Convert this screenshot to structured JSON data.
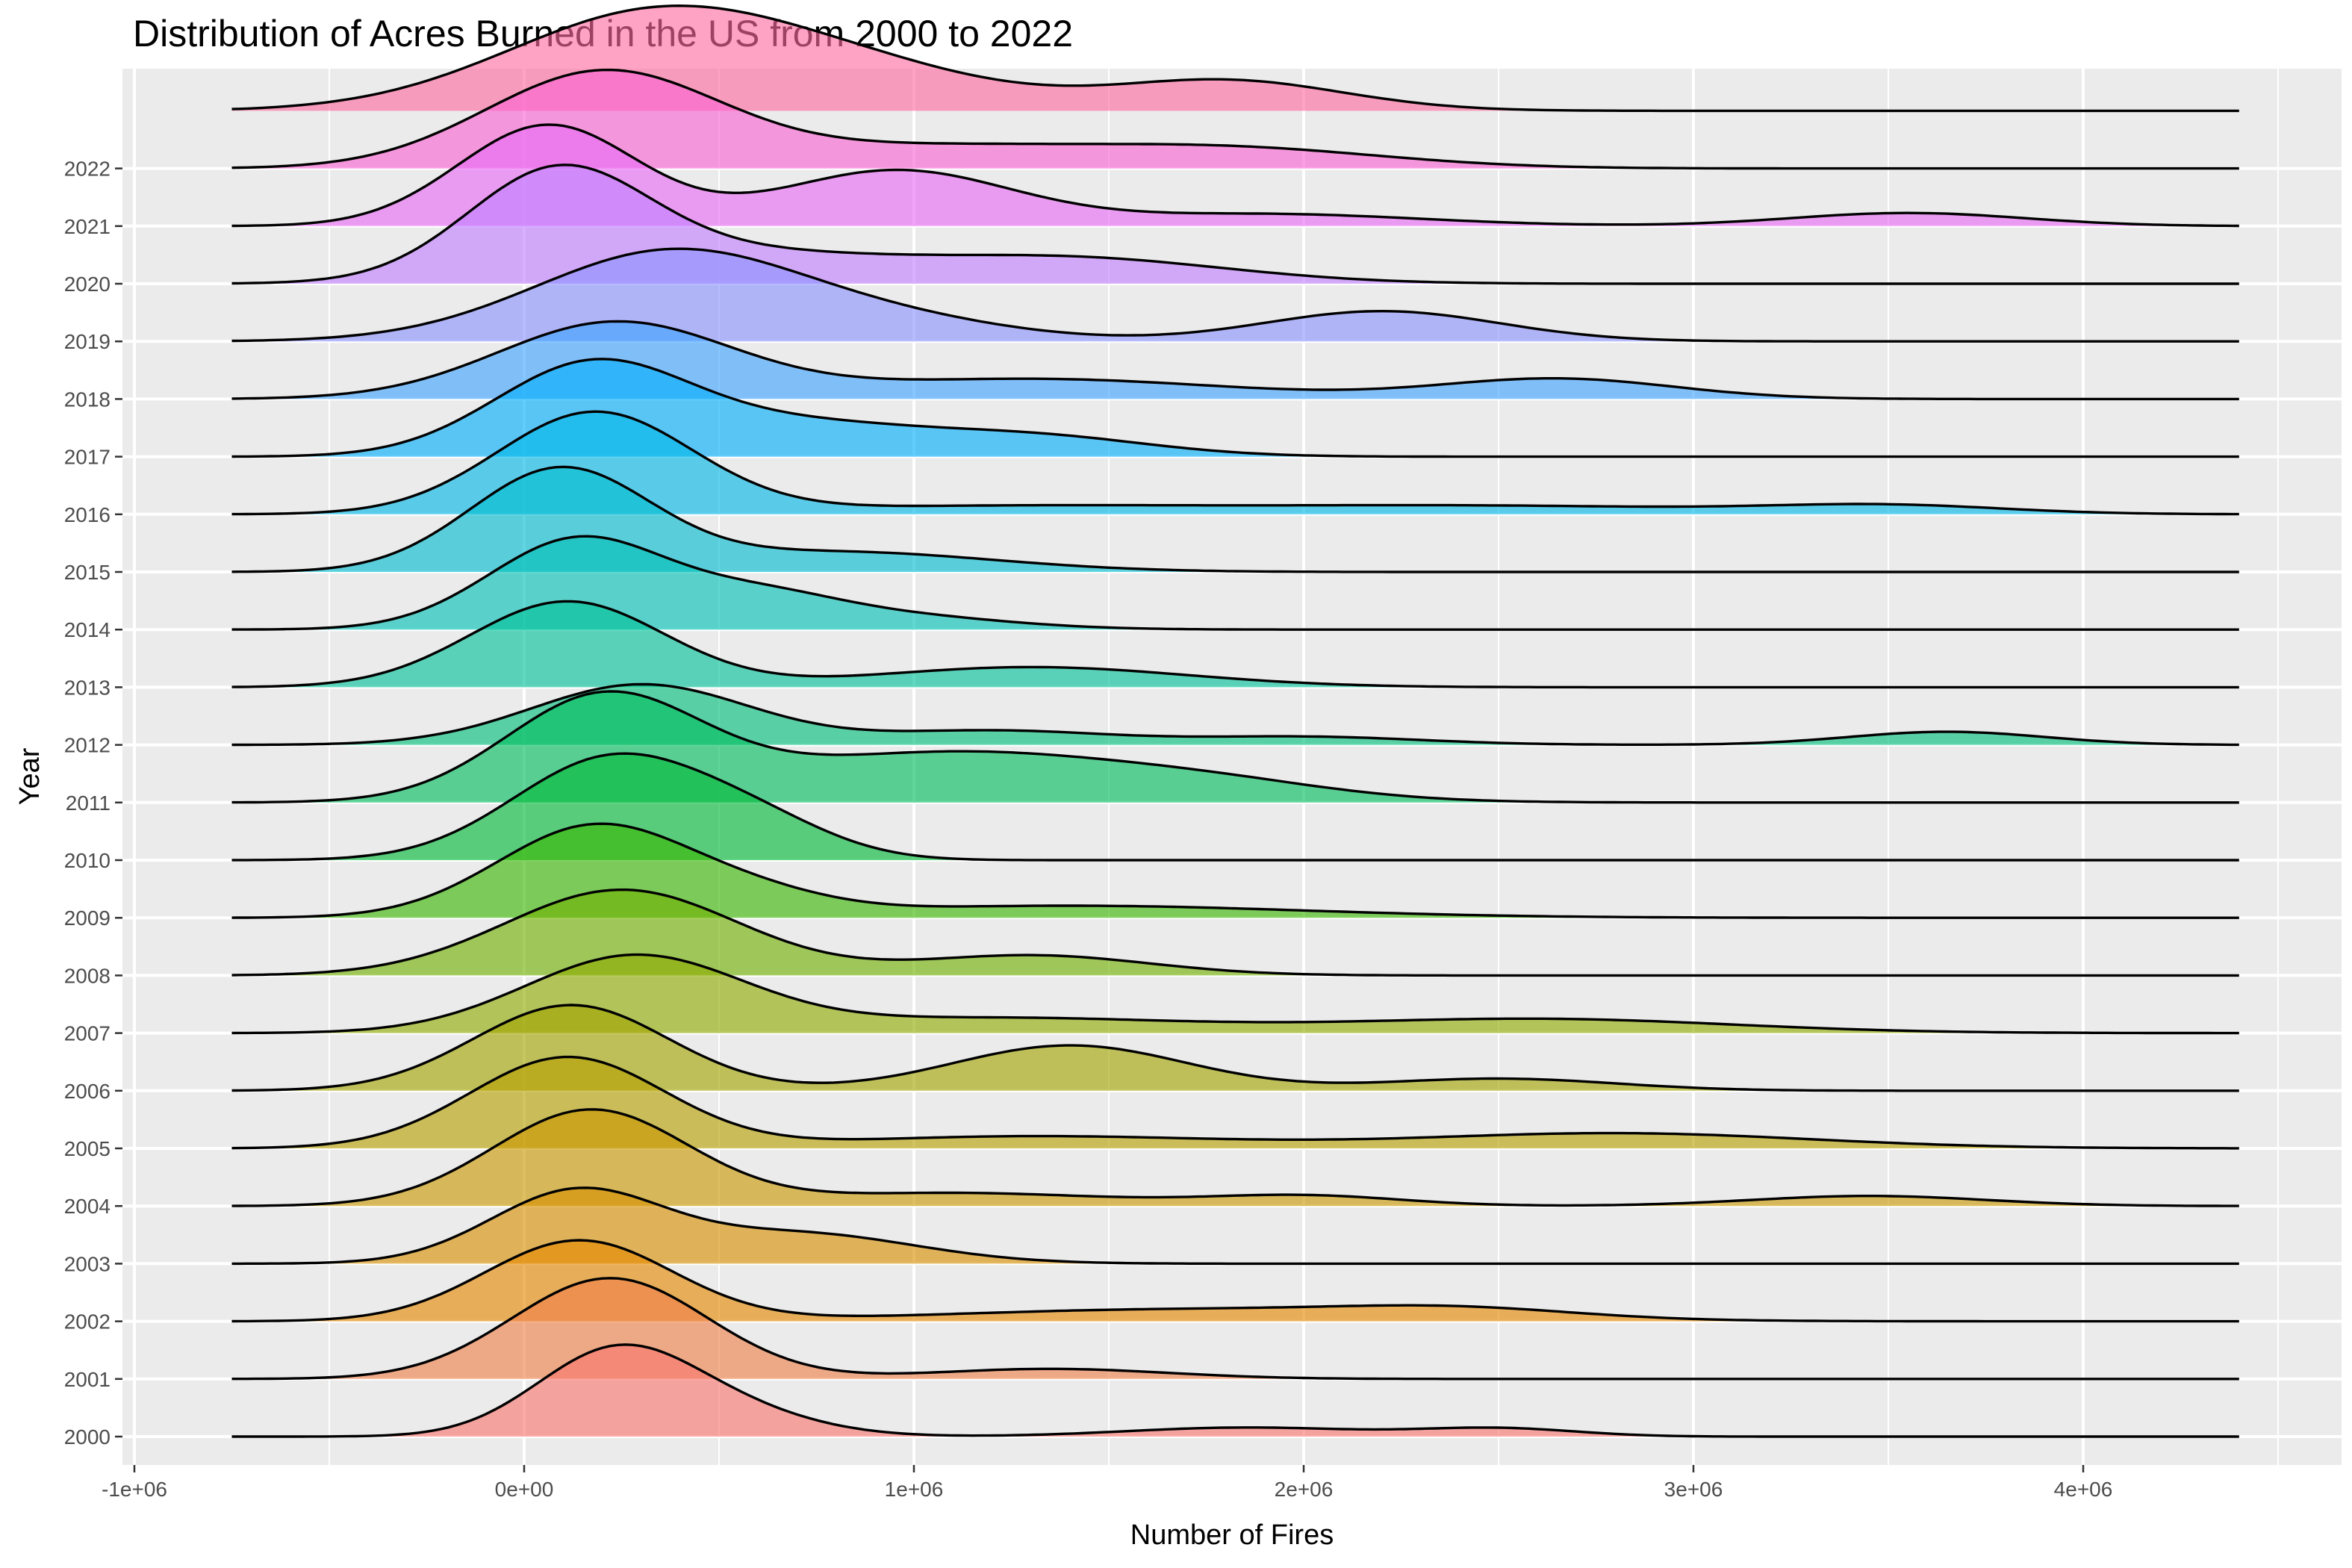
{
  "chart_data": {
    "type": "ridgeline",
    "title": "Distribution of Acres Burned in the US from 2000 to 2022",
    "xlabel": "Number of Fires",
    "ylabel": "Year",
    "xlim": [
      -1000000,
      4500000
    ],
    "density_range": [
      -750000,
      4400000
    ],
    "x_ticks": [
      {
        "value": -1000000,
        "label": "-1e+06"
      },
      {
        "value": 0,
        "label": "0e+00"
      },
      {
        "value": 1000000,
        "label": "1e+06"
      },
      {
        "value": 2000000,
        "label": "2e+06"
      },
      {
        "value": 3000000,
        "label": "3e+06"
      },
      {
        "value": 4000000,
        "label": "4e+06"
      }
    ],
    "grid": true,
    "legend": "none",
    "series": [
      {
        "year": "2000",
        "color": "#F8766D",
        "peaks": [
          [
            220000,
            200000,
            0.75
          ],
          [
            480000,
            230000,
            0.28
          ],
          [
            1850000,
            300000,
            0.09
          ],
          [
            2500000,
            200000,
            0.08
          ]
        ]
      },
      {
        "year": "2001",
        "color": "#EF7F49",
        "peaks": [
          [
            220000,
            250000,
            1.0
          ],
          [
            1350000,
            300000,
            0.1
          ]
        ]
      },
      {
        "year": "2002",
        "color": "#E58700",
        "peaks": [
          [
            140000,
            240000,
            0.8
          ],
          [
            1700000,
            600000,
            0.12
          ],
          [
            2400000,
            300000,
            0.09
          ]
        ]
      },
      {
        "year": "2003",
        "color": "#D89000",
        "peaks": [
          [
            130000,
            220000,
            0.7
          ],
          [
            700000,
            300000,
            0.3
          ]
        ]
      },
      {
        "year": "2004",
        "color": "#C99800",
        "peaks": [
          [
            170000,
            250000,
            0.95
          ],
          [
            1100000,
            400000,
            0.13
          ],
          [
            2000000,
            250000,
            0.1
          ],
          [
            3450000,
            300000,
            0.1
          ]
        ]
      },
      {
        "year": "2005",
        "color": "#B79F00",
        "peaks": [
          [
            110000,
            250000,
            0.9
          ],
          [
            1300000,
            500000,
            0.12
          ],
          [
            2800000,
            500000,
            0.15
          ]
        ]
      },
      {
        "year": "2006",
        "color": "#A3A500",
        "peaks": [
          [
            120000,
            250000,
            0.85
          ],
          [
            1400000,
            300000,
            0.45
          ],
          [
            2500000,
            300000,
            0.12
          ]
        ]
      },
      {
        "year": "2007",
        "color": "#8EAB00",
        "peaks": [
          [
            280000,
            280000,
            0.75
          ],
          [
            1200000,
            500000,
            0.15
          ],
          [
            2600000,
            500000,
            0.14
          ]
        ]
      },
      {
        "year": "2008",
        "color": "#6FB000",
        "peaks": [
          [
            250000,
            300000,
            0.85
          ],
          [
            1300000,
            300000,
            0.2
          ]
        ]
      },
      {
        "year": "2009",
        "color": "#39B600",
        "peaks": [
          [
            180000,
            250000,
            0.9
          ],
          [
            600000,
            200000,
            0.15
          ],
          [
            1400000,
            600000,
            0.12
          ]
        ]
      },
      {
        "year": "2010",
        "color": "#00BA38",
        "peaks": [
          [
            220000,
            250000,
            1.0
          ],
          [
            600000,
            200000,
            0.3
          ]
        ]
      },
      {
        "year": "2011",
        "color": "#00BD5C",
        "peaks": [
          [
            200000,
            250000,
            1.0
          ],
          [
            1100000,
            500000,
            0.5
          ],
          [
            1800000,
            300000,
            0.1
          ]
        ]
      },
      {
        "year": "2012",
        "color": "#00BF7D",
        "peaks": [
          [
            300000,
            280000,
            0.6
          ],
          [
            1200000,
            300000,
            0.14
          ],
          [
            2000000,
            300000,
            0.08
          ],
          [
            3650000,
            250000,
            0.13
          ]
        ]
      },
      {
        "year": "2013",
        "color": "#00C19A",
        "peaks": [
          [
            110000,
            250000,
            0.85
          ],
          [
            1300000,
            400000,
            0.2
          ]
        ]
      },
      {
        "year": "2014",
        "color": "#00C0B5",
        "peaks": [
          [
            140000,
            230000,
            0.9
          ],
          [
            600000,
            200000,
            0.25
          ],
          [
            900000,
            300000,
            0.15
          ]
        ]
      },
      {
        "year": "2015",
        "color": "#00BDD0",
        "peaks": [
          [
            90000,
            230000,
            1.0
          ],
          [
            800000,
            400000,
            0.2
          ]
        ]
      },
      {
        "year": "2016",
        "color": "#00B8E7",
        "peaks": [
          [
            180000,
            250000,
            1.0
          ],
          [
            1200000,
            600000,
            0.08
          ],
          [
            2500000,
            600000,
            0.08
          ],
          [
            3500000,
            300000,
            0.08
          ]
        ]
      },
      {
        "year": "2017",
        "color": "#00AFFA",
        "peaks": [
          [
            170000,
            250000,
            0.9
          ],
          [
            700000,
            300000,
            0.3
          ],
          [
            1300000,
            300000,
            0.2
          ]
        ]
      },
      {
        "year": "2018",
        "color": "#3FA3FF",
        "peaks": [
          [
            230000,
            300000,
            0.75
          ],
          [
            1300000,
            500000,
            0.2
          ],
          [
            2650000,
            300000,
            0.2
          ]
        ]
      },
      {
        "year": "2019",
        "color": "#8B93FF",
        "peaks": [
          [
            380000,
            350000,
            0.9
          ],
          [
            1000000,
            300000,
            0.15
          ],
          [
            2200000,
            300000,
            0.3
          ]
        ]
      },
      {
        "year": "2020",
        "color": "#C27FFF",
        "peaks": [
          [
            80000,
            230000,
            1.0
          ],
          [
            500000,
            400000,
            0.3
          ],
          [
            1400000,
            400000,
            0.25
          ]
        ]
      },
      {
        "year": "2021",
        "color": "#E76BF3",
        "peaks": [
          [
            60000,
            230000,
            1.0
          ],
          [
            950000,
            300000,
            0.55
          ],
          [
            1900000,
            400000,
            0.12
          ],
          [
            3550000,
            300000,
            0.13
          ]
        ]
      },
      {
        "year": "2022",
        "color": "#FA62D4",
        "peaks": [
          [
            200000,
            300000,
            0.95
          ],
          [
            1000000,
            400000,
            0.2
          ],
          [
            1800000,
            400000,
            0.2
          ]
        ]
      },
      {
        "year": "",
        "color": "#FF6AA0",
        "peaks": [
          [
            330000,
            380000,
            0.95
          ],
          [
            900000,
            350000,
            0.3
          ],
          [
            1800000,
            300000,
            0.3
          ]
        ]
      }
    ]
  }
}
